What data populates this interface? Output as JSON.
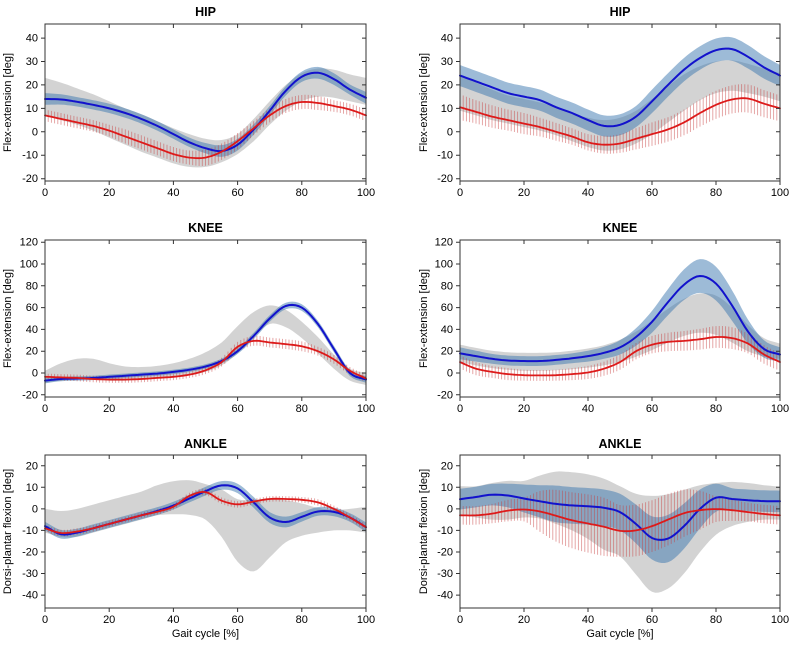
{
  "figure": {
    "background": "#ffffff",
    "description": "2x3 grid of gait kinematics plots"
  },
  "colors": {
    "blue_line": "#1212cc",
    "red_line": "#dd1a1a",
    "blue_band_fill": "#3c78af",
    "blue_band_opacity": 0.5,
    "gray_band_fill": "#969696",
    "gray_band_opacity": 0.42,
    "error_bar_stroke": "rgba(200,60,60,0.5)",
    "axis_stroke": "#333333"
  },
  "chart_data": [
    {
      "id": "hip-left",
      "type": "line",
      "row": 0,
      "col": 0,
      "title": "HIP",
      "ylabel": "Flex-extension [deg]",
      "xlabel": "",
      "xlim": [
        0,
        100
      ],
      "ylim": [
        -21,
        46
      ],
      "xticks": [
        0,
        20,
        40,
        60,
        80,
        100
      ],
      "yticks": [
        -20,
        -10,
        0,
        10,
        20,
        30,
        40
      ],
      "x": [
        0,
        5,
        10,
        15,
        20,
        25,
        30,
        35,
        40,
        45,
        50,
        55,
        60,
        65,
        70,
        75,
        80,
        85,
        90,
        95,
        100
      ],
      "gray_band": {
        "upper": [
          23,
          21,
          18.5,
          16,
          13,
          10,
          7.5,
          4.5,
          1.5,
          -1,
          -3,
          -3.5,
          -1,
          5.5,
          13,
          20,
          25,
          27,
          26.5,
          24.5,
          23
        ],
        "lower": [
          7,
          5,
          3,
          0.5,
          -2.5,
          -5.5,
          -8.5,
          -11,
          -13.5,
          -15,
          -15,
          -13,
          -9.5,
          -4,
          3,
          9,
          13,
          15,
          14.5,
          13,
          11.5
        ]
      },
      "blue_series": {
        "mean": [
          14,
          13.8,
          12.8,
          11.5,
          10,
          8,
          5.5,
          2.5,
          -1,
          -4.5,
          -7,
          -8.2,
          -5.5,
          1,
          9,
          17.5,
          23.5,
          25.2,
          22.5,
          18,
          14.5
        ],
        "band_half": [
          2.5,
          2.2,
          2,
          2,
          2,
          2,
          2,
          2,
          2,
          2,
          2.2,
          2.5,
          2.5,
          2.2,
          2,
          2,
          2.2,
          2.5,
          2.5,
          2.2,
          2.5
        ]
      },
      "red_series": {
        "mean": [
          7,
          5.5,
          4,
          2.5,
          0.5,
          -2,
          -4.5,
          -7,
          -9.5,
          -11,
          -11,
          -8.5,
          -4,
          1.5,
          7,
          11,
          12.7,
          12.3,
          11,
          9.5,
          7
        ],
        "err_half": [
          2.5,
          2.5,
          2.5,
          2.5,
          2.5,
          3,
          3,
          3,
          3,
          3,
          3.5,
          3.5,
          3.5,
          3,
          3,
          3,
          3,
          3,
          2.5,
          2.5,
          2.5
        ]
      }
    },
    {
      "id": "hip-right",
      "type": "line",
      "row": 0,
      "col": 1,
      "title": "HIP",
      "ylabel": "Flex-extension [deg]",
      "xlabel": "",
      "xlim": [
        0,
        100
      ],
      "ylim": [
        -21,
        46
      ],
      "xticks": [
        0,
        20,
        40,
        60,
        80,
        100
      ],
      "yticks": [
        -20,
        -10,
        0,
        10,
        20,
        30,
        40
      ],
      "x": [
        0,
        5,
        10,
        15,
        20,
        25,
        30,
        35,
        40,
        45,
        50,
        55,
        60,
        65,
        70,
        75,
        80,
        85,
        90,
        95,
        100
      ],
      "gray_band": {
        "upper": [
          24,
          21,
          18,
          15.5,
          14,
          12.5,
          10.5,
          8,
          6,
          5,
          6,
          9,
          14,
          19.5,
          24.5,
          28,
          30,
          30.5,
          29,
          27,
          25
        ],
        "lower": [
          9,
          7,
          5,
          3.5,
          2,
          0.5,
          -1.5,
          -4,
          -6.5,
          -8,
          -7.5,
          -5,
          -1,
          4,
          9,
          13.5,
          16.5,
          17.5,
          16.5,
          15,
          13
        ]
      },
      "blue_series": {
        "mean": [
          24,
          21.5,
          19,
          16.5,
          15,
          13.5,
          10.5,
          8,
          5,
          2.5,
          3,
          6.5,
          13,
          20,
          26.5,
          31.5,
          34.8,
          35.3,
          32,
          27.5,
          24
        ],
        "band_half": [
          4.5,
          4.5,
          4.5,
          4.5,
          4.5,
          4.5,
          4.5,
          4.5,
          4.5,
          4.5,
          4.5,
          4.5,
          5,
          5,
          5,
          5,
          5,
          5,
          5,
          4.8,
          4.5
        ]
      },
      "red_series": {
        "mean": [
          10.5,
          8.5,
          6.5,
          5,
          3.5,
          2,
          0,
          -2,
          -4.5,
          -5.5,
          -5,
          -3,
          -1,
          1,
          4,
          8,
          11.5,
          13.8,
          14.2,
          12,
          10
        ],
        "err_half": [
          5.5,
          5,
          4.8,
          4.5,
          4.5,
          4,
          3.8,
          3.5,
          3.5,
          3.8,
          4,
          4.5,
          5,
          5.2,
          5.5,
          5.8,
          6,
          6,
          6,
          5.8,
          5.5
        ]
      }
    },
    {
      "id": "knee-left",
      "type": "line",
      "row": 1,
      "col": 0,
      "title": "KNEE",
      "ylabel": "Flex-extension [deg]",
      "xlabel": "",
      "xlim": [
        0,
        100
      ],
      "ylim": [
        -22,
        122
      ],
      "xticks": [
        0,
        20,
        40,
        60,
        80,
        100
      ],
      "yticks": [
        -20,
        0,
        20,
        40,
        60,
        80,
        100,
        120
      ],
      "x": [
        0,
        5,
        10,
        15,
        20,
        25,
        30,
        35,
        40,
        45,
        50,
        55,
        60,
        65,
        70,
        75,
        80,
        85,
        90,
        95,
        100
      ],
      "gray_band": {
        "upper": [
          2,
          9,
          13,
          13,
          9,
          6,
          5.5,
          6.5,
          9,
          13,
          19,
          28,
          43,
          56,
          62,
          58,
          47,
          33,
          17,
          4,
          0
        ],
        "lower": [
          -9,
          -7,
          -6,
          -6,
          -7,
          -7,
          -6,
          -5,
          -4,
          -2,
          1,
          7,
          18,
          33,
          45,
          42,
          32,
          18,
          4,
          -7,
          -11
        ]
      },
      "blue_series": {
        "mean": [
          -7,
          -5.5,
          -5,
          -4.5,
          -3.5,
          -2.5,
          -1.5,
          -0.5,
          1,
          3,
          6,
          11,
          20,
          34,
          50,
          61.5,
          60,
          45,
          22,
          0,
          -6
        ],
        "band_half": [
          2.5,
          2,
          2,
          2,
          2,
          2,
          2,
          2,
          2,
          2,
          2,
          2.2,
          2.5,
          3,
          3,
          3,
          3,
          3,
          3,
          2.8,
          3
        ]
      },
      "red_series": {
        "mean": [
          -3.5,
          -4,
          -4.5,
          -5.5,
          -6,
          -6,
          -5.5,
          -4.5,
          -3.5,
          -1.5,
          2.5,
          10,
          24,
          29.5,
          28,
          26.5,
          24.5,
          20,
          12.5,
          2,
          -5
        ],
        "err_half": [
          3,
          3,
          3,
          3,
          3,
          3,
          3,
          3,
          3,
          3,
          3.5,
          4,
          4.5,
          4.5,
          4.5,
          4.5,
          4.5,
          4,
          4,
          3.5,
          3.5
        ]
      }
    },
    {
      "id": "knee-right",
      "type": "line",
      "row": 1,
      "col": 1,
      "title": "KNEE",
      "ylabel": "Flex-extension [deg]",
      "xlabel": "",
      "xlim": [
        0,
        100
      ],
      "ylim": [
        -22,
        122
      ],
      "xticks": [
        0,
        20,
        40,
        60,
        80,
        100
      ],
      "yticks": [
        -20,
        0,
        20,
        40,
        60,
        80,
        100,
        120
      ],
      "x": [
        0,
        5,
        10,
        15,
        20,
        25,
        30,
        35,
        40,
        45,
        50,
        55,
        60,
        65,
        70,
        75,
        80,
        85,
        90,
        95,
        100
      ],
      "gray_band": {
        "upper": [
          26,
          23,
          20.5,
          19,
          18.5,
          18.5,
          19,
          20.5,
          22.5,
          25.5,
          30.5,
          38,
          48,
          59,
          68,
          73,
          71,
          60,
          44,
          32,
          27
        ],
        "lower": [
          10,
          7,
          4.5,
          3,
          2,
          2,
          2.5,
          3.5,
          5,
          7,
          10,
          15,
          21,
          28,
          34,
          37,
          35,
          28,
          20,
          15,
          13
        ]
      },
      "blue_series": {
        "mean": [
          18,
          15.5,
          13,
          11.5,
          11,
          11,
          12,
          13.5,
          15.5,
          18.5,
          23.5,
          33,
          47,
          65,
          81,
          89,
          82,
          62,
          38,
          22,
          17
        ],
        "band_half": [
          5.5,
          5,
          4.5,
          4.5,
          4.5,
          4.5,
          4.5,
          4.5,
          5,
          5.5,
          6.5,
          8,
          10,
          12,
          14,
          15.5,
          15.5,
          14,
          11,
          8,
          6.5
        ]
      },
      "red_series": {
        "mean": [
          10,
          4,
          1,
          -1,
          -2,
          -2.2,
          -2,
          -1,
          0.5,
          4,
          10,
          20,
          26,
          28.5,
          29.5,
          31,
          33,
          32,
          27,
          17,
          10
        ],
        "err_half": [
          6,
          6,
          5.5,
          5.5,
          5,
          5,
          5,
          5.5,
          6,
          6.5,
          7,
          7.5,
          8,
          8.5,
          9,
          9.5,
          10,
          10,
          9,
          8.5,
          8
        ]
      }
    },
    {
      "id": "ankle-left",
      "type": "line",
      "row": 2,
      "col": 0,
      "title": "ANKLE",
      "ylabel": "Dorsi-plantar flexion [deg]",
      "xlabel": "Gait cycle [%]",
      "xlim": [
        0,
        100
      ],
      "ylim": [
        -46,
        25
      ],
      "xticks": [
        0,
        20,
        40,
        60,
        80,
        100
      ],
      "yticks": [
        -40,
        -30,
        -20,
        -10,
        0,
        10,
        20
      ],
      "x": [
        0,
        5,
        10,
        15,
        20,
        25,
        30,
        35,
        40,
        45,
        50,
        55,
        60,
        65,
        70,
        75,
        80,
        85,
        90,
        95,
        100
      ],
      "gray_band": {
        "upper": [
          0,
          -1,
          0,
          2,
          4,
          6,
          8,
          11,
          12.8,
          13.3,
          11.5,
          9,
          4.5,
          4.2,
          4.8,
          4,
          2.5,
          0.5,
          -0.5,
          0,
          1
        ],
        "lower": [
          -11,
          -13,
          -13,
          -11,
          -9,
          -7,
          -5,
          -3,
          -2.5,
          -2.8,
          -5,
          -13,
          -24.5,
          -29,
          -22.5,
          -15.5,
          -12.5,
          -11,
          -10,
          -10,
          -11
        ]
      },
      "blue_series": {
        "mean": [
          -8,
          -11.8,
          -11,
          -9,
          -7,
          -5,
          -3,
          -1,
          1.5,
          4.8,
          8.2,
          10.9,
          9.5,
          3,
          -4,
          -6.1,
          -3.7,
          -1.2,
          -1.4,
          -4,
          -8.5
        ],
        "band_half": [
          2,
          2,
          1.8,
          1.8,
          1.8,
          1.8,
          1.8,
          1.8,
          1.8,
          1.8,
          2,
          2,
          2.2,
          2.5,
          2.5,
          2.5,
          2.2,
          2,
          2,
          2,
          2.2
        ]
      },
      "red_series": {
        "mean": [
          -9,
          -11.2,
          -10.5,
          -9,
          -7,
          -5,
          -3,
          -1.3,
          1,
          6,
          7.8,
          3.8,
          2.1,
          3.4,
          4.6,
          4.6,
          4.2,
          3,
          0,
          -4,
          -8.5
        ],
        "err_half": [
          1.5,
          1.5,
          1.5,
          1.5,
          1.5,
          1.3,
          1.3,
          1.3,
          1.3,
          1.5,
          1.5,
          1.5,
          1.5,
          1.3,
          1.3,
          1.3,
          1.3,
          1.5,
          1.5,
          1.5,
          1.5
        ]
      }
    },
    {
      "id": "ankle-right",
      "type": "line",
      "row": 2,
      "col": 1,
      "title": "ANKLE",
      "ylabel": "Dorsi-plantar flexion [deg]",
      "xlabel": "Gait cycle [%]",
      "xlim": [
        0,
        100
      ],
      "ylim": [
        -46,
        25
      ],
      "xticks": [
        0,
        20,
        40,
        60,
        80,
        100
      ],
      "yticks": [
        -40,
        -30,
        -20,
        -10,
        0,
        10,
        20
      ],
      "x": [
        0,
        5,
        10,
        15,
        20,
        25,
        30,
        35,
        40,
        45,
        50,
        55,
        60,
        65,
        70,
        75,
        80,
        85,
        90,
        95,
        100
      ],
      "gray_band": {
        "upper": [
          10.5,
          10.5,
          12,
          13,
          13,
          15.5,
          17.3,
          17,
          16,
          14,
          10.5,
          7,
          6,
          6.8,
          8.8,
          11,
          12,
          12.5,
          12,
          11,
          10.3
        ],
        "lower": [
          -2.5,
          -4,
          -5,
          -5,
          -4,
          -4.5,
          -7,
          -10,
          -14,
          -19,
          -22,
          -30.5,
          -38.5,
          -37,
          -30,
          -20,
          -12,
          -8,
          -6,
          -5,
          -5
        ]
      },
      "blue_series": {
        "mean": [
          4.5,
          5.5,
          6.6,
          6.2,
          4.8,
          3.5,
          2.3,
          1.6,
          1.2,
          0.5,
          -1.5,
          -7,
          -13.5,
          -13.8,
          -8,
          0,
          5.2,
          4.6,
          4,
          3.6,
          3.5
        ],
        "band_half": [
          4.8,
          4.8,
          5,
          5.5,
          6.5,
          7.5,
          8.5,
          8.5,
          8.5,
          8.5,
          8.5,
          9,
          10,
          11,
          10.5,
          9,
          6.5,
          5,
          5,
          5,
          5
        ]
      },
      "red_series": {
        "mean": [
          -3,
          -3,
          -2.2,
          -0.8,
          -0.3,
          -1.2,
          -3.2,
          -5.3,
          -6.8,
          -8.3,
          -10.2,
          -10,
          -8,
          -5,
          -2,
          -0.6,
          -0.1,
          -0.6,
          -1.5,
          -2.4,
          -3
        ],
        "err_half": [
          4.3,
          4.3,
          4.5,
          5,
          5.5,
          9.5,
          12,
          13,
          13.5,
          13.5,
          12,
          12,
          12,
          12,
          11,
          9,
          6,
          5,
          4.3,
          4.3,
          4.3
        ]
      }
    }
  ]
}
